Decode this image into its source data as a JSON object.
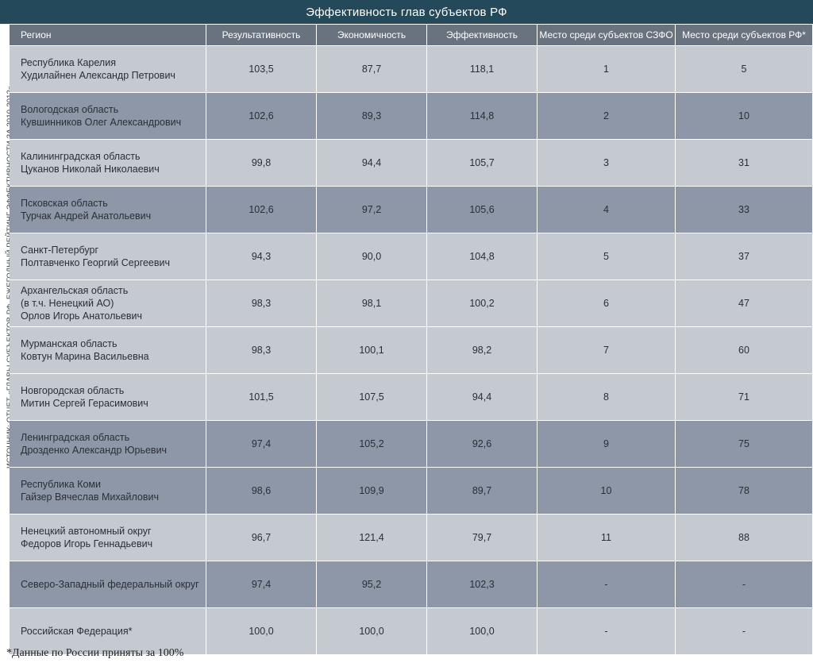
{
  "title": "Эффективность глав субъектов РФ",
  "side_note": "ИСТОЧНИК: ОТЧЕТ «ГЛАВЫ СУБЪЕКТОВ РФ. ЕЖЕГОДНЫЙ РЕЙТИНГ ЭФФЕКТИВНОСТИ ЗА 2010-2012»",
  "footnote": "*Данные по России приняты за 100%",
  "headers": [
    "Регион",
    "Результативность",
    "Экономичность",
    "Эффективность",
    "Место среди субъектов  СЗФО",
    "Место среди субъектов РФ*"
  ],
  "rows": [
    {
      "region": [
        "Республика Карелия",
        "Худилайнен Александр Петрович"
      ],
      "values": [
        "103,5",
        "87,7",
        "118,1",
        "1",
        "5"
      ],
      "shade": "light"
    },
    {
      "region": [
        "Вологодская область",
        "Кувшинников Олег Александрович"
      ],
      "values": [
        "102,6",
        "89,3",
        "114,8",
        "2",
        "10"
      ],
      "shade": "dark"
    },
    {
      "region": [
        "Калининградская область",
        "Цуканов Николай Николаевич"
      ],
      "values": [
        "99,8",
        "94,4",
        "105,7",
        "3",
        "31"
      ],
      "shade": "light"
    },
    {
      "region": [
        "Псковская область",
        "Турчак Андрей Анатольевич"
      ],
      "values": [
        "102,6",
        "97,2",
        "105,6",
        "4",
        "33"
      ],
      "shade": "dark"
    },
    {
      "region": [
        "Санкт-Петербург",
        "Полтавченко Георгий Сергеевич"
      ],
      "values": [
        "94,3",
        "90,0",
        "104,8",
        "5",
        "37"
      ],
      "shade": "light"
    },
    {
      "region": [
        "Архангельская область",
        "(в т.ч. Ненецкий АО)",
        "Орлов Игорь Анатольевич"
      ],
      "values": [
        "98,3",
        "98,1",
        "100,2",
        "6",
        "47"
      ],
      "shade": "light"
    },
    {
      "region": [
        "Мурманская область",
        "Ковтун Марина Васильевна"
      ],
      "values": [
        "98,3",
        "100,1",
        "98,2",
        "7",
        "60"
      ],
      "shade": "light"
    },
    {
      "region": [
        "Новгородская область",
        "Митин Сергей Герасимович"
      ],
      "values": [
        "101,5",
        "107,5",
        "94,4",
        "8",
        "71"
      ],
      "shade": "light"
    },
    {
      "region": [
        "Ленинградская область",
        "Дрозденко Александр Юрьевич"
      ],
      "values": [
        "97,4",
        "105,2",
        "92,6",
        "9",
        "75"
      ],
      "shade": "dark"
    },
    {
      "region": [
        "Республика Коми",
        "Гайзер Вячеслав Михайлович"
      ],
      "values": [
        "98,6",
        "109,9",
        "89,7",
        "10",
        "78"
      ],
      "shade": "dark"
    },
    {
      "region": [
        "Ненецкий автономный округ",
        "Федоров Игорь Геннадьевич"
      ],
      "values": [
        "96,7",
        "121,4",
        "79,7",
        "11",
        "88"
      ],
      "shade": "light"
    },
    {
      "region": [
        "Северо-Западный федеральный округ"
      ],
      "values": [
        "97,4",
        "95,2",
        "102,3",
        "-",
        "-"
      ],
      "shade": "dark"
    },
    {
      "region": [
        "Российская Федерация*"
      ],
      "values": [
        "100,0",
        "100,0",
        "100,0",
        "-",
        "-"
      ],
      "shade": "light"
    }
  ]
}
